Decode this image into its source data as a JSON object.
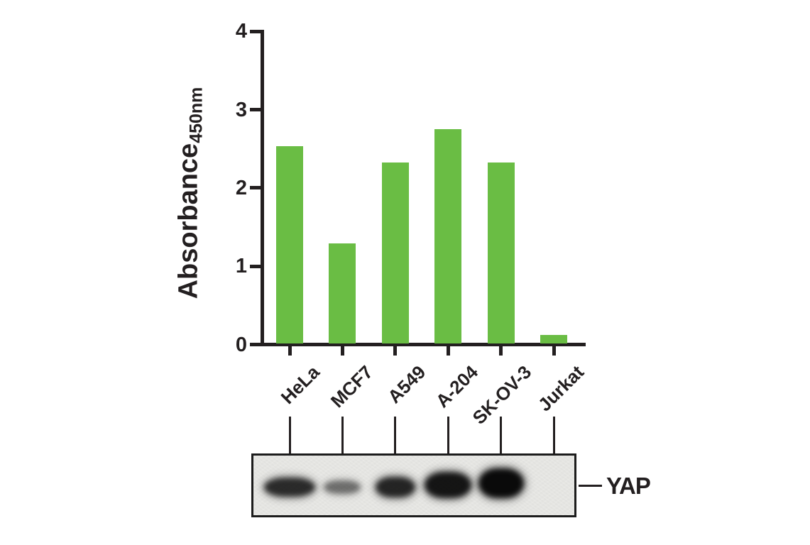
{
  "figure": {
    "background": "#ffffff"
  },
  "chart_data": {
    "type": "bar",
    "title": "",
    "categories": [
      "HeLa",
      "MCF7",
      "A549",
      "A-204",
      "SK-OV-3",
      "Jurkat"
    ],
    "values": [
      2.52,
      1.28,
      2.31,
      2.74,
      2.31,
      0.11
    ],
    "ylabel": "Absorbance",
    "ylabel_subscript": "450nm",
    "xlabel": "",
    "ylim": [
      0,
      4
    ],
    "yticks": [
      0,
      1,
      2,
      3,
      4
    ],
    "grid": false,
    "legend": null,
    "bar_color": "#6abd44",
    "axis_color": "#231f20"
  },
  "blot": {
    "target_label": "YAP",
    "background": "#e9e9e6",
    "band_color": "#0a0a0a",
    "lanes": [
      {
        "name": "HeLa",
        "band": true,
        "intensity": 0.85,
        "band_width": 72,
        "band_height": 27,
        "band_dy": 1
      },
      {
        "name": "MCF7",
        "band": true,
        "intensity": 0.55,
        "band_width": 52,
        "band_height": 19,
        "band_dy": 1
      },
      {
        "name": "A549",
        "band": true,
        "intensity": 0.88,
        "band_width": 56,
        "band_height": 29,
        "band_dy": 1
      },
      {
        "name": "A-204",
        "band": true,
        "intensity": 0.95,
        "band_width": 66,
        "band_height": 37,
        "band_dy": -2
      },
      {
        "name": "SK-OV-3",
        "band": true,
        "intensity": 1.0,
        "band_width": 64,
        "band_height": 42,
        "band_dy": -4
      },
      {
        "name": "Jurkat",
        "band": false,
        "intensity": 0,
        "band_width": 0,
        "band_height": 0,
        "band_dy": 0
      }
    ]
  }
}
